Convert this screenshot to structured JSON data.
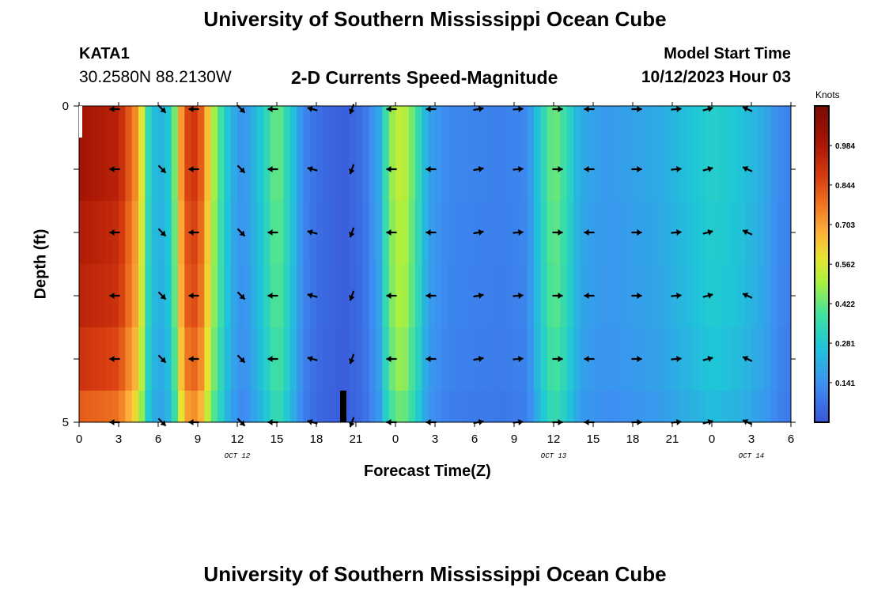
{
  "header": {
    "title": "University of Southern Mississippi Ocean Cube",
    "station": "KATA1",
    "coords": "30.2580N  88.2130W",
    "subtitle": "2-D Currents Speed-Magnitude",
    "model_label": "Model Start Time",
    "model_time": "10/12/2023 Hour 03"
  },
  "footer": {
    "title": "University of Southern Mississippi Ocean Cube"
  },
  "chart_data": {
    "type": "heatmap",
    "title": "2-D Currents Speed-Magnitude",
    "xlabel": "Forecast Time(Z)",
    "ylabel": "Depth (ft)",
    "x_tick_labels": [
      "0",
      "3",
      "6",
      "9",
      "12",
      "15",
      "18",
      "21",
      "0",
      "3",
      "6",
      "9",
      "12",
      "15",
      "18",
      "21",
      "0",
      "3",
      "6"
    ],
    "x_range_hours": [
      0,
      54
    ],
    "y_tick_labels": [
      "0",
      "5"
    ],
    "y_range_ft": [
      0,
      5
    ],
    "date_labels": [
      {
        "text": "OCT 12",
        "hour": 12
      },
      {
        "text": "OCT 13",
        "hour": 36
      },
      {
        "text": "OCT 14",
        "hour": 51
      }
    ],
    "colorbar": {
      "units": "Knots",
      "tick_labels": [
        "0.984",
        "0.844",
        "0.703",
        "0.562",
        "0.422",
        "0.281",
        "0.141"
      ],
      "range": [
        0.0,
        1.125
      ]
    },
    "speed_profile_knots": [
      {
        "hour": 0,
        "value": 1.0
      },
      {
        "hour": 3,
        "value": 0.95
      },
      {
        "hour": 4.5,
        "value": 0.7
      },
      {
        "hour": 5.2,
        "value": 0.35
      },
      {
        "hour": 6,
        "value": 0.2
      },
      {
        "hour": 7,
        "value": 0.3
      },
      {
        "hour": 8,
        "value": 0.85
      },
      {
        "hour": 9,
        "value": 0.9
      },
      {
        "hour": 10.2,
        "value": 0.5
      },
      {
        "hour": 11.5,
        "value": 0.22
      },
      {
        "hour": 12.5,
        "value": 0.14
      },
      {
        "hour": 14,
        "value": 0.3
      },
      {
        "hour": 15,
        "value": 0.45
      },
      {
        "hour": 16,
        "value": 0.3
      },
      {
        "hour": 17,
        "value": 0.12
      },
      {
        "hour": 18,
        "value": 0.06
      },
      {
        "hour": 20,
        "value": 0.02
      },
      {
        "hour": 21.5,
        "value": 0.06
      },
      {
        "hour": 22.8,
        "value": 0.2
      },
      {
        "hour": 23.5,
        "value": 0.45
      },
      {
        "hour": 24.5,
        "value": 0.55
      },
      {
        "hour": 25.5,
        "value": 0.4
      },
      {
        "hour": 26.5,
        "value": 0.18
      },
      {
        "hour": 28,
        "value": 0.12
      },
      {
        "hour": 32,
        "value": 0.1
      },
      {
        "hour": 34,
        "value": 0.12
      },
      {
        "hour": 35,
        "value": 0.3
      },
      {
        "hour": 36,
        "value": 0.45
      },
      {
        "hour": 37,
        "value": 0.35
      },
      {
        "hour": 38,
        "value": 0.2
      },
      {
        "hour": 40,
        "value": 0.16
      },
      {
        "hour": 44,
        "value": 0.2
      },
      {
        "hour": 46,
        "value": 0.25
      },
      {
        "hour": 48,
        "value": 0.3
      },
      {
        "hour": 50,
        "value": 0.27
      },
      {
        "hour": 52,
        "value": 0.2
      },
      {
        "hour": 53,
        "value": 0.13
      },
      {
        "hour": 54,
        "value": 0.1
      }
    ],
    "depth_rows_ft": [
      0,
      0.5,
      1.5,
      2.5,
      3.5,
      4.5
    ],
    "vector_hours": [
      2.7,
      6.3,
      8.7,
      12.3,
      14.7,
      17.7,
      20.7,
      23.7,
      26.7,
      30.3,
      33.3,
      36.3,
      38.7,
      42.3,
      45.3,
      47.7,
      50.7
    ],
    "vector_directions_deg": [
      180,
      -45,
      180,
      -45,
      180,
      165,
      -110,
      180,
      180,
      10,
      5,
      0,
      180,
      0,
      5,
      15,
      155
    ]
  }
}
